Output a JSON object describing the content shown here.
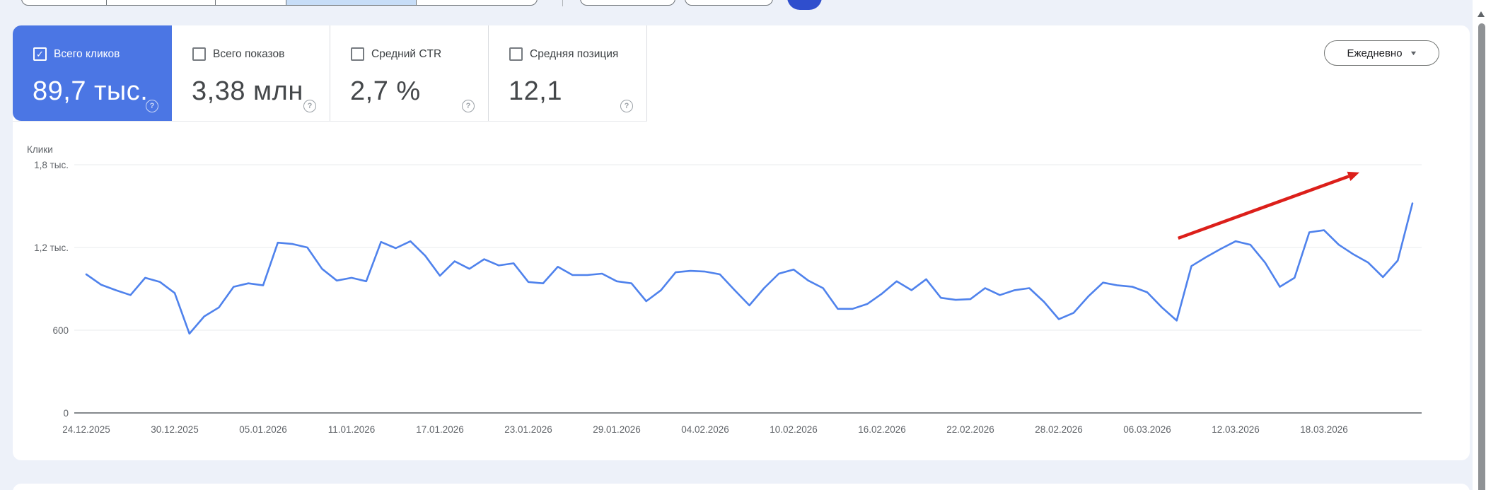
{
  "icons": {
    "checkmark": "✓",
    "help": "?",
    "dropdown_arrow": "▼"
  },
  "colors": {
    "page_bg": "#edf1f9",
    "card_bg": "#ffffff",
    "selected_tile_blue": "#4b76e4",
    "line_blue": "#4f82ec",
    "arrow_red": "#dc1f1a",
    "segment_highlight": "#c7ddf7",
    "blue_action_button": "#2f4ecd"
  },
  "metrics": [
    {
      "label": "Всего кликов",
      "value": "89,7 тыс.",
      "checked": true
    },
    {
      "label": "Всего показов",
      "value": "3,38 млн",
      "checked": false
    },
    {
      "label": "Средний CTR",
      "value": "2,7 %",
      "checked": false
    },
    {
      "label": "Средняя позиция",
      "value": "12,1",
      "checked": false
    }
  ],
  "granularity_dropdown": {
    "label": "Ежедневно"
  },
  "chart_data": {
    "type": "line",
    "title": "Клики",
    "ylabel": "Клики",
    "ylim": [
      0,
      1800
    ],
    "grid": "horizontal",
    "y_ticks": [
      {
        "value": 0,
        "label": "0"
      },
      {
        "value": 600,
        "label": "600"
      },
      {
        "value": 1200,
        "label": "1,2 тыс."
      },
      {
        "value": 1800,
        "label": "1,8 тыс."
      }
    ],
    "x_tick_labels": [
      "24.12.2025",
      "30.12.2025",
      "05.01.2026",
      "11.01.2026",
      "17.01.2026",
      "23.01.2026",
      "29.01.2026",
      "04.02.2026",
      "10.02.2026",
      "16.02.2026",
      "22.02.2026",
      "28.02.2026",
      "06.03.2026",
      "12.03.2026",
      "18.03.2026"
    ],
    "x_tick_day_indexes": [
      0,
      6,
      12,
      18,
      24,
      30,
      36,
      42,
      48,
      54,
      60,
      66,
      72,
      78,
      84
    ],
    "series": [
      {
        "name": "Клики",
        "color": "#4f82ec",
        "start_date": "24.12.2025",
        "values": [
          1005,
          930,
          890,
          855,
          980,
          950,
          870,
          575,
          700,
          765,
          915,
          940,
          925,
          1235,
          1225,
          1200,
          1045,
          960,
          980,
          955,
          1240,
          1195,
          1245,
          1140,
          995,
          1100,
          1045,
          1115,
          1070,
          1085,
          950,
          940,
          1060,
          1000,
          1000,
          1010,
          955,
          940,
          810,
          890,
          1020,
          1030,
          1025,
          1005,
          890,
          780,
          905,
          1010,
          1040,
          960,
          905,
          755,
          755,
          790,
          865,
          955,
          890,
          970,
          835,
          820,
          825,
          905,
          855,
          890,
          905,
          805,
          680,
          725,
          845,
          945,
          925,
          915,
          875,
          765,
          670,
          1065,
          1130,
          1190,
          1245,
          1220,
          1090,
          915,
          980,
          1310,
          1325,
          1220,
          1150,
          1090,
          985,
          1105,
          1520
        ]
      }
    ],
    "annotation_arrow": {
      "color": "#dc1f1a",
      "from_day": 74.1,
      "from_value": 1267,
      "to_day": 86.4,
      "to_value": 1744
    }
  }
}
